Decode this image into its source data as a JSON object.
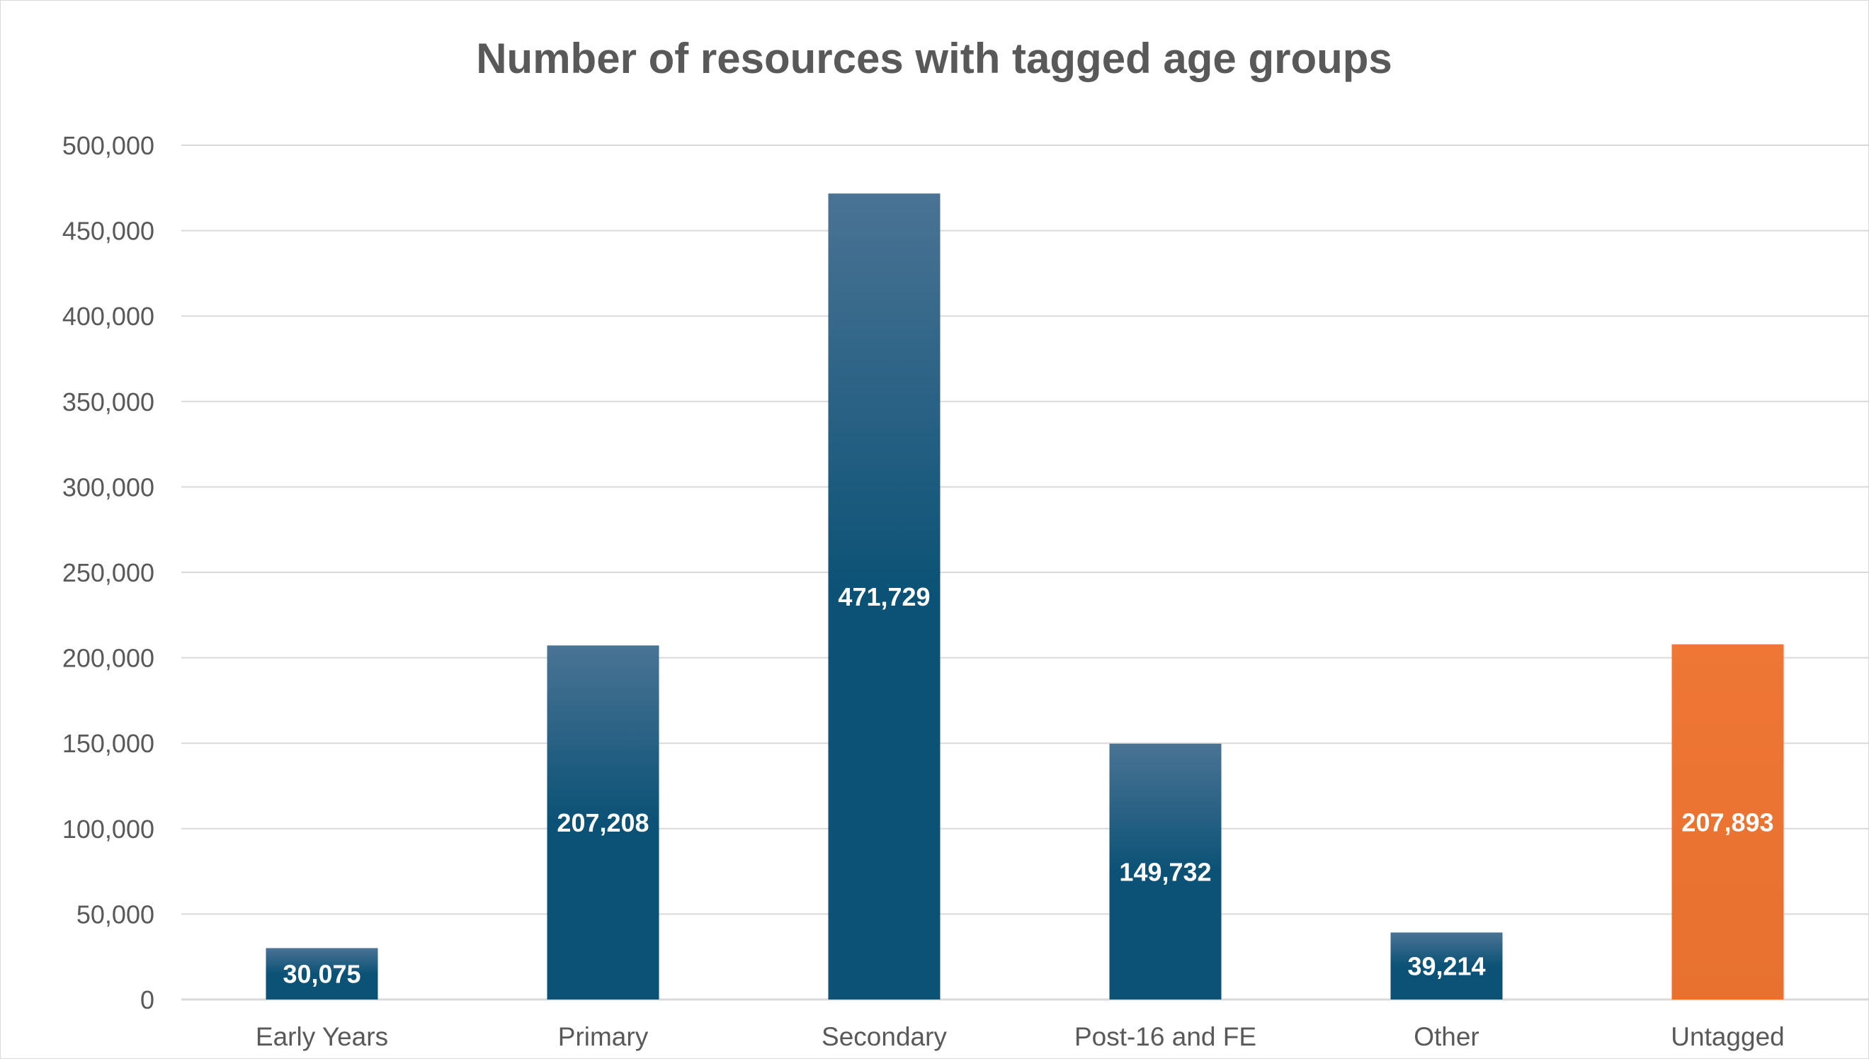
{
  "chart_data": {
    "type": "bar",
    "title": "Number of resources with tagged age groups",
    "categories": [
      "Early Years",
      "Primary",
      "Secondary",
      "Post-16 and FE",
      "Other",
      "Untagged"
    ],
    "values": [
      30075,
      207208,
      471729,
      149732,
      39214,
      207893
    ],
    "data_labels": [
      "30,075",
      "207,208",
      "471,729",
      "149,732",
      "39,214",
      "207,893"
    ],
    "y_ticks": [
      0,
      50000,
      100000,
      150000,
      200000,
      250000,
      300000,
      350000,
      400000,
      450000,
      500000
    ],
    "y_tick_labels": [
      "0",
      "50,000",
      "100,000",
      "150,000",
      "200,000",
      "250,000",
      "300,000",
      "350,000",
      "400,000",
      "450,000",
      "500,000"
    ],
    "ylim": [
      0,
      500000
    ],
    "grid": true,
    "legend": "none",
    "colors": {
      "bar_top": "#4a7394",
      "bar_bottom": "#0b5276",
      "highlight_top": "#ef7634",
      "highlight_bottom": "#e8712f"
    },
    "highlight_category": "Untagged"
  }
}
